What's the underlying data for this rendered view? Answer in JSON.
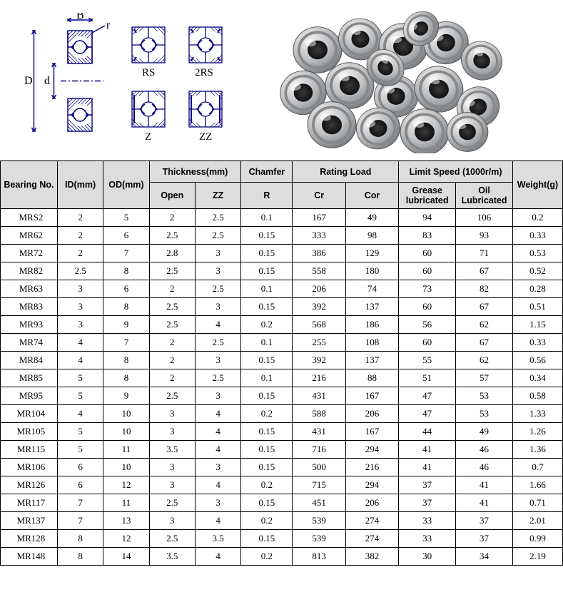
{
  "diagram": {
    "labels": {
      "B": "B",
      "r": "r",
      "D": "D",
      "d": "d",
      "RS": "RS",
      "2RS": "2RS",
      "Z": "Z",
      "ZZ": "ZZ"
    },
    "line_color": "#000080",
    "line_width": 1.4
  },
  "table": {
    "header_bg": "#dddddd",
    "border_color": "#000000",
    "headers": {
      "bearing": "Bearing No.",
      "id": "ID(mm)",
      "od": "OD(mm)",
      "thickness": "Thickness(mm)",
      "thickness_open": "Open",
      "thickness_zz": "ZZ",
      "chamfer": "Chamfer",
      "chamfer_r": "R",
      "rating": "Rating Load",
      "rating_cr": "Cr",
      "rating_cor": "Cor",
      "limit": "Limit Speed (1000r/m)",
      "limit_grease": "Grease lubricated",
      "limit_oil": "Oil Lubricated",
      "weight": "Weight(g)"
    },
    "rows": [
      {
        "bn": "MRS2",
        "id": "2",
        "od": "5",
        "open": "2",
        "zz": "2.5",
        "r": "0.1",
        "cr": "167",
        "cor": "49",
        "grease": "94",
        "oil": "106",
        "wt": "0.2"
      },
      {
        "bn": "MR62",
        "id": "2",
        "od": "6",
        "open": "2.5",
        "zz": "2.5",
        "r": "0.15",
        "cr": "333",
        "cor": "98",
        "grease": "83",
        "oil": "93",
        "wt": "0.33"
      },
      {
        "bn": "MR72",
        "id": "2",
        "od": "7",
        "open": "2.8",
        "zz": "3",
        "r": "0.15",
        "cr": "386",
        "cor": "129",
        "grease": "60",
        "oil": "71",
        "wt": "0.53"
      },
      {
        "bn": "MR82",
        "id": "2.5",
        "od": "8",
        "open": "2.5",
        "zz": "3",
        "r": "0.15",
        "cr": "558",
        "cor": "180",
        "grease": "60",
        "oil": "67",
        "wt": "0.52"
      },
      {
        "bn": "MR63",
        "id": "3",
        "od": "6",
        "open": "2",
        "zz": "2.5",
        "r": "0.1",
        "cr": "206",
        "cor": "74",
        "grease": "73",
        "oil": "82",
        "wt": "0.28"
      },
      {
        "bn": "MR83",
        "id": "3",
        "od": "8",
        "open": "2.5",
        "zz": "3",
        "r": "0.15",
        "cr": "392",
        "cor": "137",
        "grease": "60",
        "oil": "67",
        "wt": "0.51"
      },
      {
        "bn": "MR93",
        "id": "3",
        "od": "9",
        "open": "2.5",
        "zz": "4",
        "r": "0.2",
        "cr": "568",
        "cor": "186",
        "grease": "56",
        "oil": "62",
        "wt": "1.15"
      },
      {
        "bn": "MR74",
        "id": "4",
        "od": "7",
        "open": "2",
        "zz": "2.5",
        "r": "0.1",
        "cr": "255",
        "cor": "108",
        "grease": "60",
        "oil": "67",
        "wt": "0.33"
      },
      {
        "bn": "MR84",
        "id": "4",
        "od": "8",
        "open": "2",
        "zz": "3",
        "r": "0.15",
        "cr": "392",
        "cor": "137",
        "grease": "55",
        "oil": "62",
        "wt": "0.56"
      },
      {
        "bn": "MR85",
        "id": "5",
        "od": "8",
        "open": "2",
        "zz": "2.5",
        "r": "0.1",
        "cr": "216",
        "cor": "88",
        "grease": "51",
        "oil": "57",
        "wt": "0.34"
      },
      {
        "bn": "MR95",
        "id": "5",
        "od": "9",
        "open": "2.5",
        "zz": "3",
        "r": "0.15",
        "cr": "431",
        "cor": "167",
        "grease": "47",
        "oil": "53",
        "wt": "0.58"
      },
      {
        "bn": "MR104",
        "id": "4",
        "od": "10",
        "open": "3",
        "zz": "4",
        "r": "0.2",
        "cr": "588",
        "cor": "206",
        "grease": "47",
        "oil": "53",
        "wt": "1.33"
      },
      {
        "bn": "MR105",
        "id": "5",
        "od": "10",
        "open": "3",
        "zz": "4",
        "r": "0.15",
        "cr": "431",
        "cor": "167",
        "grease": "44",
        "oil": "49",
        "wt": "1.26"
      },
      {
        "bn": "MR115",
        "id": "5",
        "od": "11",
        "open": "3.5",
        "zz": "4",
        "r": "0.15",
        "cr": "716",
        "cor": "294",
        "grease": "41",
        "oil": "46",
        "wt": "1.36"
      },
      {
        "bn": "MR106",
        "id": "6",
        "od": "10",
        "open": "3",
        "zz": "3",
        "r": "0.15",
        "cr": "500",
        "cor": "216",
        "grease": "41",
        "oil": "46",
        "wt": "0.7"
      },
      {
        "bn": "MR126",
        "id": "6",
        "od": "12",
        "open": "3",
        "zz": "4",
        "r": "0.2",
        "cr": "715",
        "cor": "294",
        "grease": "37",
        "oil": "41",
        "wt": "1.66"
      },
      {
        "bn": "MR117",
        "id": "7",
        "od": "11",
        "open": "2.5",
        "zz": "3",
        "r": "0.15",
        "cr": "451",
        "cor": "206",
        "grease": "37",
        "oil": "41",
        "wt": "0.71"
      },
      {
        "bn": "MR137",
        "id": "7",
        "od": "13",
        "open": "3",
        "zz": "4",
        "r": "0.2",
        "cr": "539",
        "cor": "274",
        "grease": "33",
        "oil": "37",
        "wt": "2.01"
      },
      {
        "bn": "MR128",
        "id": "8",
        "od": "12",
        "open": "2.5",
        "zz": "3.5",
        "r": "0.15",
        "cr": "539",
        "cor": "274",
        "grease": "33",
        "oil": "37",
        "wt": "0.99"
      },
      {
        "bn": "MR148",
        "id": "8",
        "od": "14",
        "open": "3.5",
        "zz": "4",
        "r": "0.2",
        "cr": "813",
        "cor": "382",
        "grease": "30",
        "oil": "34",
        "wt": "2.19"
      }
    ]
  }
}
